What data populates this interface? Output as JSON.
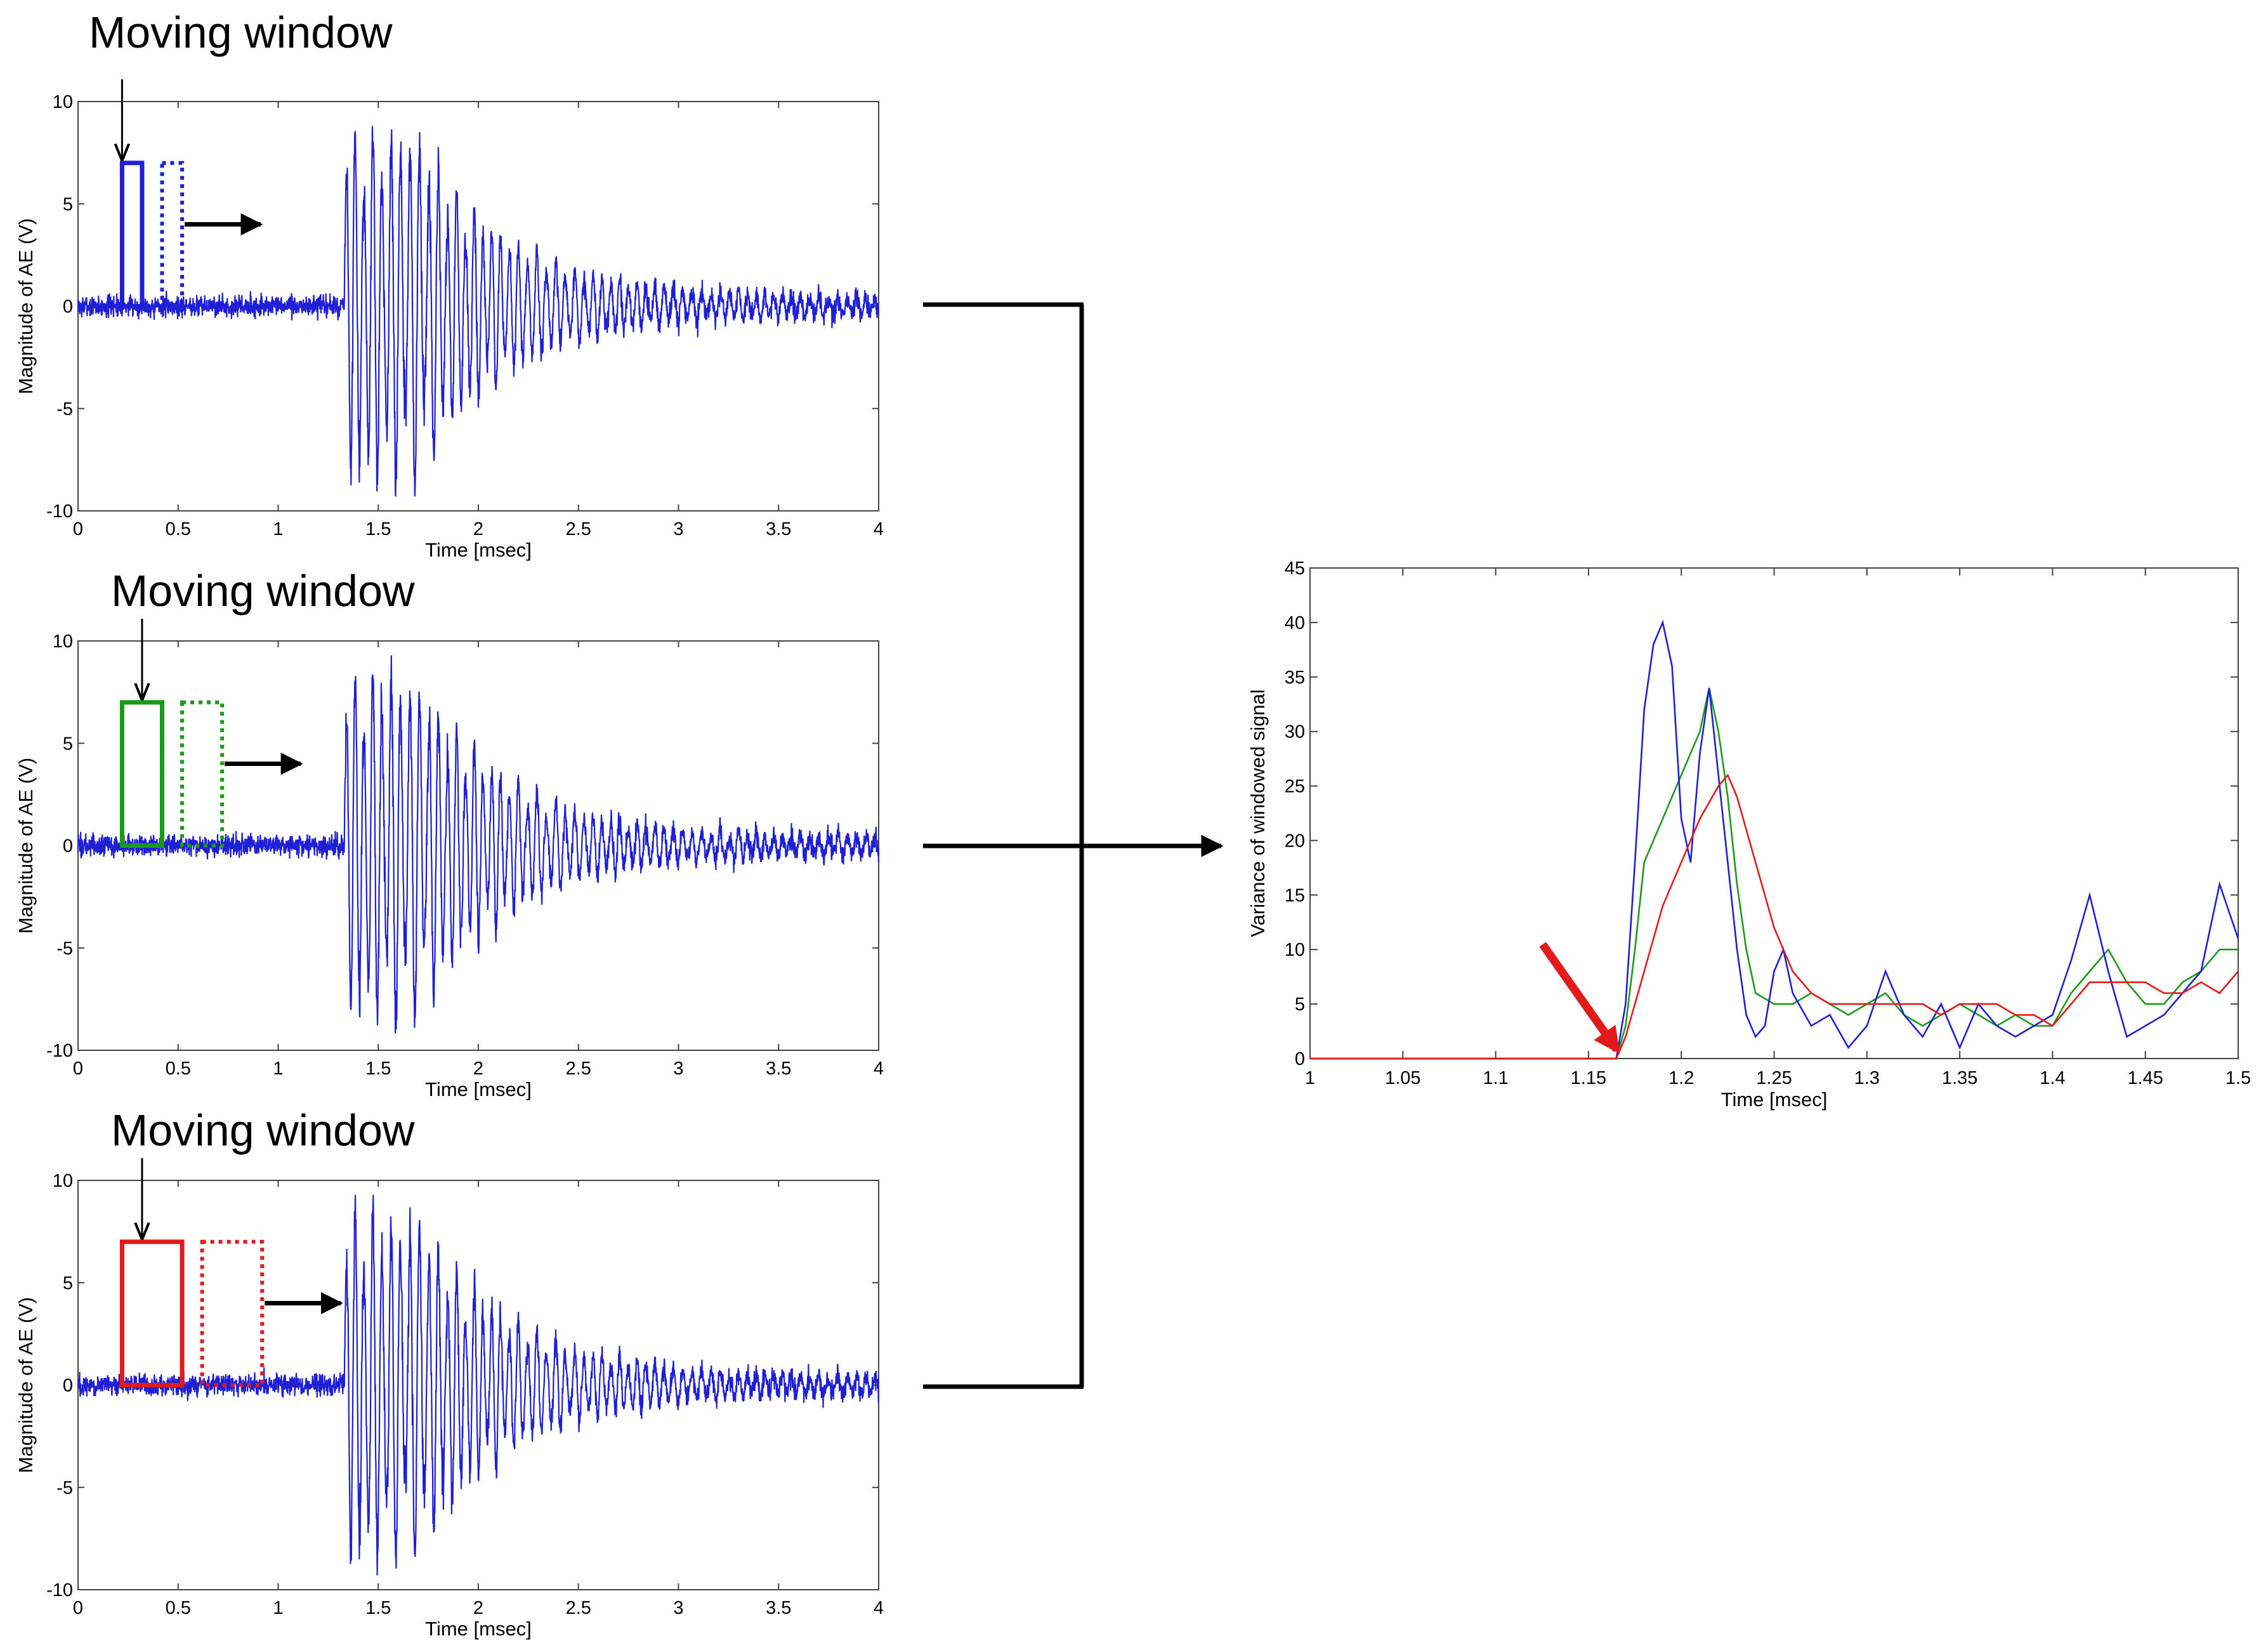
{
  "chart_data": [
    {
      "type": "line",
      "panel_label": "Moving window",
      "xlabel": "Time [msec]",
      "ylabel": "Magnitude of AE (V)",
      "xlim": [
        0,
        4
      ],
      "ylim": [
        -10,
        10
      ],
      "x_ticks": [
        "0",
        "0.5",
        "1",
        "1.5",
        "2",
        "2.5",
        "3",
        "3.5",
        "4"
      ],
      "y_ticks": [
        "-10",
        "-5",
        "0",
        "5",
        "10"
      ],
      "series_color": "#1f1fd6",
      "window_color": "#1f1fd6",
      "window": {
        "x_start": 0.22,
        "x_end": 0.32,
        "height": 7
      },
      "next_window": {
        "x_start": 0.42,
        "x_end": 0.52,
        "height": 7
      },
      "arrow_pointer_x": 0.22
    },
    {
      "type": "line",
      "panel_label": "Moving window",
      "xlabel": "Time [msec]",
      "ylabel": "Magnitude of AE (V)",
      "xlim": [
        0,
        4
      ],
      "ylim": [
        -10,
        10
      ],
      "x_ticks": [
        "0",
        "0.5",
        "1",
        "1.5",
        "2",
        "2.5",
        "3",
        "3.5",
        "4"
      ],
      "y_ticks": [
        "-10",
        "-5",
        "0",
        "5",
        "10"
      ],
      "series_color": "#1f1fd6",
      "window_color": "#1a9a1a",
      "window": {
        "x_start": 0.22,
        "x_end": 0.42,
        "height": 7
      },
      "next_window": {
        "x_start": 0.52,
        "x_end": 0.72,
        "height": 7
      },
      "arrow_pointer_x": 0.32
    },
    {
      "type": "line",
      "panel_label": "Moving window",
      "xlabel": "Time [msec]",
      "ylabel": "Magnitude of AE (V)",
      "xlim": [
        0,
        4
      ],
      "ylim": [
        -10,
        10
      ],
      "x_ticks": [
        "0",
        "0.5",
        "1",
        "1.5",
        "2",
        "2.5",
        "3",
        "3.5",
        "4"
      ],
      "y_ticks": [
        "-10",
        "-5",
        "0",
        "5",
        "10"
      ],
      "series_color": "#1f1fd6",
      "window_color": "#e41a1a",
      "window": {
        "x_start": 0.22,
        "x_end": 0.52,
        "height": 7
      },
      "next_window": {
        "x_start": 0.62,
        "x_end": 0.92,
        "height": 7
      },
      "arrow_pointer_x": 0.32
    },
    {
      "type": "line",
      "xlabel": "Time [msec]",
      "ylabel": "Variance of windowed signal",
      "xlim": [
        1,
        1.5
      ],
      "ylim": [
        0,
        45
      ],
      "x_ticks": [
        "1",
        "1.05",
        "1.1",
        "1.15",
        "1.2",
        "1.25",
        "1.3",
        "1.35",
        "1.4",
        "1.45",
        "1.5"
      ],
      "y_ticks": [
        "0",
        "5",
        "10",
        "15",
        "20",
        "25",
        "30",
        "35",
        "40",
        "45"
      ],
      "onset_marker": {
        "x": 1.168,
        "y": 0,
        "color": "#e41a1a"
      },
      "series": [
        {
          "color": "#1f1fd6",
          "x": [
            1.0,
            1.165,
            1.17,
            1.175,
            1.18,
            1.185,
            1.19,
            1.195,
            1.2,
            1.205,
            1.21,
            1.215,
            1.22,
            1.225,
            1.23,
            1.235,
            1.24,
            1.245,
            1.25,
            1.255,
            1.26,
            1.27,
            1.28,
            1.29,
            1.3,
            1.31,
            1.32,
            1.33,
            1.34,
            1.35,
            1.36,
            1.37,
            1.38,
            1.39,
            1.4,
            1.41,
            1.42,
            1.43,
            1.44,
            1.45,
            1.46,
            1.47,
            1.48,
            1.49,
            1.5
          ],
          "y": [
            0,
            0,
            5,
            18,
            32,
            38,
            40,
            36,
            22,
            18,
            28,
            34,
            26,
            18,
            10,
            4,
            2,
            3,
            8,
            10,
            6,
            3,
            4,
            1,
            3,
            8,
            4,
            2,
            5,
            1,
            5,
            3,
            2,
            3,
            4,
            9,
            15,
            8,
            2,
            3,
            4,
            6,
            8,
            16,
            11
          ]
        },
        {
          "color": "#1a9a1a",
          "x": [
            1.0,
            1.165,
            1.17,
            1.175,
            1.18,
            1.19,
            1.2,
            1.21,
            1.215,
            1.22,
            1.225,
            1.23,
            1.235,
            1.24,
            1.25,
            1.26,
            1.27,
            1.28,
            1.29,
            1.3,
            1.31,
            1.32,
            1.33,
            1.34,
            1.35,
            1.36,
            1.37,
            1.38,
            1.39,
            1.4,
            1.41,
            1.42,
            1.43,
            1.44,
            1.45,
            1.46,
            1.47,
            1.48,
            1.49,
            1.5
          ],
          "y": [
            0,
            0,
            3,
            10,
            18,
            22,
            26,
            30,
            34,
            30,
            24,
            16,
            10,
            6,
            5,
            5,
            6,
            5,
            4,
            5,
            6,
            4,
            3,
            4,
            5,
            4,
            3,
            4,
            3,
            3,
            6,
            8,
            10,
            7,
            5,
            5,
            7,
            8,
            10,
            10
          ]
        },
        {
          "color": "#e41a1a",
          "x": [
            1.0,
            1.165,
            1.17,
            1.18,
            1.19,
            1.2,
            1.21,
            1.22,
            1.225,
            1.23,
            1.24,
            1.25,
            1.26,
            1.27,
            1.28,
            1.29,
            1.3,
            1.31,
            1.32,
            1.33,
            1.34,
            1.35,
            1.36,
            1.37,
            1.38,
            1.39,
            1.4,
            1.41,
            1.42,
            1.43,
            1.44,
            1.45,
            1.46,
            1.47,
            1.48,
            1.49,
            1.5
          ],
          "y": [
            0,
            0,
            2,
            8,
            14,
            18,
            22,
            25,
            26,
            24,
            18,
            12,
            8,
            6,
            5,
            5,
            5,
            5,
            5,
            5,
            4,
            5,
            5,
            5,
            4,
            4,
            3,
            5,
            7,
            7,
            7,
            7,
            6,
            6,
            7,
            6,
            8
          ]
        }
      ]
    }
  ]
}
